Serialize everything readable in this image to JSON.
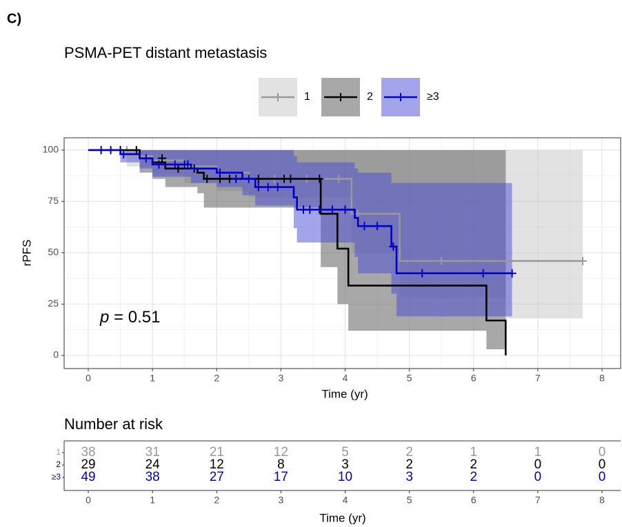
{
  "chart_data": {
    "type": "step",
    "panel_label": "C)",
    "title": "PSMA-PET distant metastasis",
    "x_label": "Time (yr)",
    "y_label": "rPFS",
    "annotation": [
      "p",
      "= 0.51"
    ],
    "xlim": [
      -0.376,
      8.29
    ],
    "ylim": [
      -6.4,
      106
    ],
    "xticks": [
      0,
      1,
      2,
      3,
      4,
      5,
      6,
      7,
      8
    ],
    "yticks": [
      0,
      25,
      50,
      75,
      100
    ],
    "grid": true,
    "legend": "top",
    "series": [
      {
        "name": "1",
        "color": "#999999",
        "band_color": "#bfbfbf",
        "band_opacity": 0.45,
        "x": [
          0,
          0.6,
          1.0,
          1.5,
          2.0,
          2.5,
          4.1,
          4.85,
          6.5,
          7.7
        ],
        "values": [
          100,
          97,
          95,
          92,
          89,
          86,
          69,
          46,
          46,
          46
        ],
        "lower": [
          100,
          92,
          88,
          84,
          80,
          77,
          50,
          28,
          18,
          18
        ],
        "upper": [
          100,
          100,
          100,
          100,
          100,
          100,
          100,
          100,
          100,
          100
        ],
        "censor_x": [
          0.6,
          2.9,
          3.4,
          3.9,
          4.2,
          5.5,
          7.7
        ],
        "censor_values": [
          100,
          86,
          86,
          86,
          69,
          46,
          46
        ]
      },
      {
        "name": "2",
        "color": "#000000",
        "band_color": "#6e6e6e",
        "band_opacity": 0.6,
        "x": [
          0,
          0.8,
          1.0,
          1.2,
          1.7,
          1.8,
          3.62,
          3.88,
          4.05,
          6.2,
          6.5
        ],
        "values": [
          100,
          96,
          94,
          91,
          89,
          86,
          69,
          52,
          34,
          17,
          0
        ],
        "lower": [
          100,
          89,
          86,
          82,
          79,
          72,
          43,
          25,
          12,
          3,
          0
        ],
        "upper": [
          100,
          100,
          100,
          100,
          100,
          100,
          100,
          100,
          100,
          100,
          100
        ],
        "censor_x": [
          0.5,
          0.75,
          1.15,
          1.4,
          1.65,
          1.85,
          2.05,
          2.2,
          2.65,
          3.05,
          3.15,
          3.6
        ],
        "censor_values": [
          100,
          100,
          96,
          91,
          91,
          86,
          86,
          86,
          86,
          86,
          86,
          86
        ]
      },
      {
        "name": "≥3",
        "color": "#0000cc",
        "band_color": "#4a4ad8",
        "band_opacity": 0.5,
        "x": [
          0,
          0.5,
          0.8,
          1.0,
          1.6,
          2.0,
          2.4,
          2.6,
          3.2,
          3.25,
          4.15,
          4.2,
          4.72,
          4.8,
          6.6
        ],
        "values": [
          100,
          98,
          96,
          93,
          91,
          89,
          86,
          82,
          77,
          71,
          67,
          63,
          53,
          40,
          40
        ],
        "lower": [
          100,
          94,
          91,
          87,
          84,
          82,
          78,
          73,
          62,
          55,
          48,
          40,
          30,
          19,
          19
        ],
        "upper": [
          100,
          100,
          100,
          100,
          100,
          100,
          100,
          100,
          97,
          94,
          91,
          89,
          84,
          84,
          84
        ],
        "censor_x": [
          0.2,
          0.35,
          0.55,
          0.9,
          1.1,
          1.35,
          1.5,
          1.55,
          2.05,
          2.3,
          2.5,
          2.65,
          2.8,
          2.95,
          3.35,
          3.45,
          3.6,
          3.8,
          4.0,
          4.3,
          4.5,
          4.75,
          5.2,
          6.15,
          6.6
        ],
        "censor_values": [
          100,
          100,
          98,
          96,
          93,
          93,
          93,
          93,
          89,
          86,
          86,
          82,
          82,
          82,
          71,
          71,
          71,
          71,
          71,
          63,
          63,
          53,
          40,
          40,
          40
        ]
      }
    ],
    "risk_table": {
      "title": "Number at risk",
      "x_label": "Time (yr)",
      "xlim": [
        -0.376,
        8.29
      ],
      "xticks": [
        0,
        1,
        2,
        3,
        4,
        5,
        6,
        7,
        8
      ],
      "rows": [
        {
          "label": "1",
          "color": "#999999",
          "values": [
            38,
            31,
            21,
            12,
            5,
            2,
            1,
            1,
            0
          ]
        },
        {
          "label": "2",
          "color": "#000000",
          "values": [
            29,
            24,
            12,
            8,
            3,
            2,
            2,
            0,
            0
          ]
        },
        {
          "label": "≥3",
          "color": "#0000cc",
          "values": [
            49,
            38,
            27,
            17,
            10,
            3,
            2,
            0,
            0
          ]
        }
      ]
    }
  }
}
